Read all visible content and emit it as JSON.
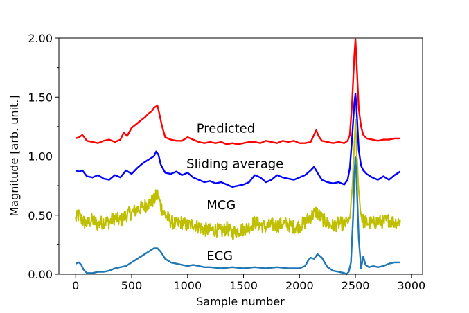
{
  "chart_data": {
    "type": "line",
    "xlabel": "Sample number",
    "ylabel": "Magnitude [arb. unit.]",
    "xlim": [
      -150,
      3100
    ],
    "ylim": [
      0,
      2.0
    ],
    "x_ticks": [
      {
        "value": 0,
        "label": "0"
      },
      {
        "value": 500,
        "label": "500"
      },
      {
        "value": 1000,
        "label": "1000"
      },
      {
        "value": 1500,
        "label": "1500"
      },
      {
        "value": 2000,
        "label": "2000"
      },
      {
        "value": 2500,
        "label": "2500"
      },
      {
        "value": 3000,
        "label": "3000"
      }
    ],
    "y_ticks": [
      {
        "value": 0.0,
        "label": "0.00"
      },
      {
        "value": 0.5,
        "label": "0.50"
      },
      {
        "value": 1.0,
        "label": "1.00"
      },
      {
        "value": 1.5,
        "label": "1.50"
      },
      {
        "value": 2.0,
        "label": "2.00"
      }
    ],
    "y_minor_ticks": [
      0.25,
      0.75,
      1.25,
      1.75
    ],
    "grid": false,
    "annotations": [
      {
        "text": "Predicted",
        "x": 1080,
        "y": 1.2
      },
      {
        "text": "Sliding average",
        "x": 990,
        "y": 0.9
      },
      {
        "text": "MCG",
        "x": 1170,
        "y": 0.55
      },
      {
        "text": "ECG",
        "x": 1170,
        "y": 0.12
      }
    ],
    "series": [
      {
        "color": "#ff0000",
        "x": [
          0,
          30,
          60,
          100,
          150,
          200,
          250,
          300,
          350,
          400,
          430,
          460,
          500,
          540,
          580,
          620,
          650,
          680,
          700,
          730,
          750,
          770,
          800,
          850,
          900,
          950,
          1000,
          1050,
          1100,
          1150,
          1200,
          1250,
          1300,
          1350,
          1400,
          1450,
          1500,
          1550,
          1600,
          1650,
          1700,
          1750,
          1800,
          1850,
          1900,
          1950,
          2000,
          2050,
          2100,
          2130,
          2150,
          2170,
          2200,
          2250,
          2300,
          2350,
          2400,
          2430,
          2450,
          2470,
          2490,
          2500,
          2510,
          2530,
          2550,
          2570,
          2600,
          2650,
          2700,
          2750,
          2800,
          2850,
          2900
        ],
        "y": [
          1.15,
          1.16,
          1.18,
          1.13,
          1.12,
          1.11,
          1.13,
          1.14,
          1.12,
          1.14,
          1.2,
          1.17,
          1.24,
          1.27,
          1.3,
          1.33,
          1.36,
          1.38,
          1.41,
          1.43,
          1.35,
          1.26,
          1.16,
          1.14,
          1.13,
          1.13,
          1.16,
          1.14,
          1.12,
          1.11,
          1.12,
          1.11,
          1.12,
          1.1,
          1.11,
          1.1,
          1.11,
          1.12,
          1.12,
          1.11,
          1.13,
          1.12,
          1.11,
          1.13,
          1.12,
          1.13,
          1.11,
          1.11,
          1.12,
          1.18,
          1.22,
          1.17,
          1.13,
          1.12,
          1.11,
          1.12,
          1.11,
          1.13,
          1.18,
          1.45,
          1.85,
          1.99,
          1.8,
          1.4,
          1.25,
          1.18,
          1.15,
          1.14,
          1.13,
          1.14,
          1.14,
          1.15,
          1.15
        ]
      },
      {
        "color": "#0000ff",
        "x": [
          0,
          30,
          60,
          100,
          150,
          200,
          250,
          300,
          350,
          400,
          450,
          500,
          550,
          600,
          650,
          700,
          720,
          740,
          760,
          800,
          850,
          900,
          950,
          1000,
          1050,
          1100,
          1150,
          1200,
          1250,
          1300,
          1350,
          1400,
          1450,
          1500,
          1550,
          1600,
          1650,
          1700,
          1750,
          1800,
          1850,
          1900,
          1950,
          2000,
          2050,
          2100,
          2130,
          2160,
          2200,
          2250,
          2300,
          2350,
          2400,
          2430,
          2450,
          2470,
          2490,
          2500,
          2510,
          2530,
          2550,
          2570,
          2600,
          2650,
          2700,
          2750,
          2800,
          2850,
          2900
        ],
        "y": [
          0.88,
          0.87,
          0.88,
          0.83,
          0.82,
          0.84,
          0.81,
          0.8,
          0.84,
          0.82,
          0.88,
          0.85,
          0.9,
          0.94,
          0.97,
          1.0,
          1.04,
          1.01,
          0.93,
          0.86,
          0.85,
          0.87,
          0.84,
          0.86,
          0.82,
          0.8,
          0.78,
          0.79,
          0.77,
          0.78,
          0.76,
          0.74,
          0.75,
          0.76,
          0.78,
          0.84,
          0.82,
          0.78,
          0.8,
          0.84,
          0.82,
          0.81,
          0.8,
          0.82,
          0.84,
          0.88,
          0.91,
          0.86,
          0.8,
          0.78,
          0.77,
          0.78,
          0.76,
          0.8,
          0.9,
          1.15,
          1.45,
          1.53,
          1.4,
          1.05,
          0.92,
          0.88,
          0.85,
          0.82,
          0.8,
          0.83,
          0.8,
          0.84,
          0.87
        ]
      },
      {
        "color": "#bfbf00",
        "x": [
          0,
          30,
          60,
          100,
          150,
          200,
          250,
          300,
          350,
          400,
          450,
          500,
          550,
          600,
          650,
          700,
          730,
          760,
          800,
          850,
          900,
          950,
          1000,
          1050,
          1100,
          1150,
          1200,
          1250,
          1300,
          1350,
          1400,
          1450,
          1500,
          1550,
          1600,
          1650,
          1700,
          1750,
          1800,
          1850,
          1900,
          1950,
          2000,
          2050,
          2100,
          2150,
          2200,
          2250,
          2300,
          2350,
          2400,
          2430,
          2450,
          2470,
          2490,
          2500,
          2510,
          2530,
          2550,
          2570,
          2600,
          2650,
          2700,
          2750,
          2800,
          2850,
          2900
        ],
        "y": [
          0.47,
          0.5,
          0.45,
          0.43,
          0.46,
          0.42,
          0.45,
          0.44,
          0.48,
          0.45,
          0.5,
          0.52,
          0.55,
          0.57,
          0.6,
          0.63,
          0.68,
          0.58,
          0.5,
          0.45,
          0.42,
          0.44,
          0.41,
          0.43,
          0.4,
          0.38,
          0.37,
          0.38,
          0.36,
          0.39,
          0.35,
          0.37,
          0.38,
          0.4,
          0.44,
          0.42,
          0.4,
          0.42,
          0.41,
          0.43,
          0.42,
          0.4,
          0.41,
          0.44,
          0.49,
          0.53,
          0.47,
          0.43,
          0.41,
          0.43,
          0.42,
          0.44,
          0.47,
          0.7,
          1.1,
          1.3,
          1.05,
          0.7,
          0.5,
          0.45,
          0.44,
          0.43,
          0.45,
          0.44,
          0.46,
          0.44,
          0.45
        ],
        "noise_amplitude": 0.06
      },
      {
        "color": "#1f77b4",
        "x": [
          0,
          30,
          50,
          70,
          100,
          150,
          200,
          250,
          300,
          350,
          400,
          450,
          500,
          550,
          600,
          650,
          700,
          730,
          760,
          800,
          850,
          900,
          950,
          1000,
          1050,
          1100,
          1150,
          1200,
          1300,
          1400,
          1500,
          1600,
          1700,
          1800,
          1900,
          2000,
          2050,
          2080,
          2100,
          2130,
          2160,
          2200,
          2250,
          2300,
          2350,
          2400,
          2420,
          2440,
          2460,
          2480,
          2490,
          2500,
          2510,
          2530,
          2550,
          2570,
          2590,
          2620,
          2660,
          2700,
          2750,
          2800,
          2850,
          2900
        ],
        "y": [
          0.09,
          0.1,
          0.08,
          0.04,
          0.01,
          0.01,
          0.02,
          0.02,
          0.03,
          0.05,
          0.06,
          0.07,
          0.1,
          0.13,
          0.16,
          0.19,
          0.22,
          0.22,
          0.19,
          0.13,
          0.1,
          0.09,
          0.08,
          0.07,
          0.08,
          0.07,
          0.06,
          0.06,
          0.05,
          0.06,
          0.05,
          0.06,
          0.05,
          0.06,
          0.05,
          0.05,
          0.07,
          0.12,
          0.14,
          0.13,
          0.17,
          0.14,
          0.06,
          0.03,
          0.02,
          0.01,
          0.0,
          0.02,
          0.1,
          0.5,
          0.85,
          0.99,
          0.8,
          0.3,
          0.05,
          0.15,
          0.08,
          0.06,
          0.07,
          0.06,
          0.07,
          0.09,
          0.1,
          0.1
        ]
      }
    ]
  }
}
